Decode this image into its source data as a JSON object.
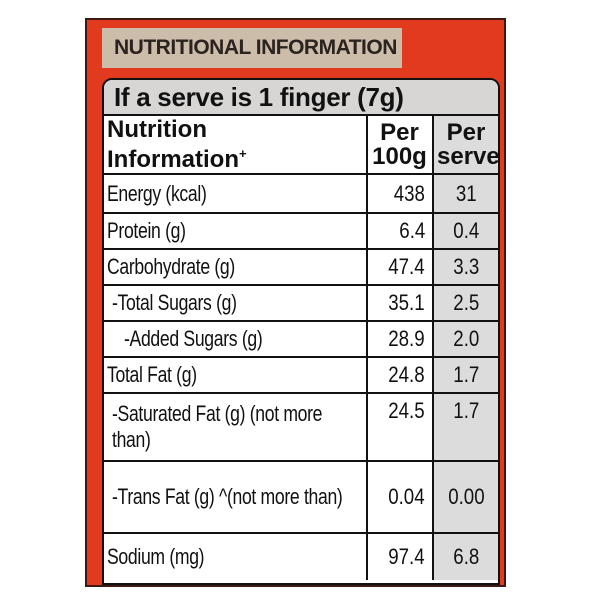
{
  "header": {
    "title": "NUTRITIONAL INFORMATION"
  },
  "serve": {
    "text": "If a serve is 1 finger (7g)"
  },
  "columns": {
    "nutrient_line1": "Nutrition",
    "nutrient_line2": "Information",
    "nutrient_marker": "+",
    "per100_line1": "Per",
    "per100_line2": "100g",
    "perserve_line1": "Per",
    "perserve_line2": "serve"
  },
  "rows": [
    {
      "name": "Energy (kcal)",
      "per100g": "438",
      "per_serve": "31"
    },
    {
      "name": "Protein (g)",
      "per100g": "6.4",
      "per_serve": "0.4"
    },
    {
      "name": "Carbohydrate (g)",
      "per100g": "47.4",
      "per_serve": "3.3"
    },
    {
      "name": "-Total Sugars (g)",
      "per100g": "35.1",
      "per_serve": "2.5"
    },
    {
      "name": "-Added Sugars (g)",
      "per100g": "28.9",
      "per_serve": "2.0"
    },
    {
      "name": "Total Fat (g)",
      "per100g": "24.8",
      "per_serve": "1.7"
    },
    {
      "name": "-Saturated Fat (g) (not more than)",
      "per100g": "24.5",
      "per_serve": "1.7"
    },
    {
      "name": "-Trans Fat (g) ^(not more than)",
      "per100g": "0.04",
      "per_serve": "0.00"
    },
    {
      "name": "Sodium (mg)",
      "per100g": "97.4",
      "per_serve": "6.8"
    }
  ],
  "colors": {
    "panel": "#e23a1f",
    "header_tab": "#ccbcaa",
    "serve_band": "#d7d6d5"
  }
}
